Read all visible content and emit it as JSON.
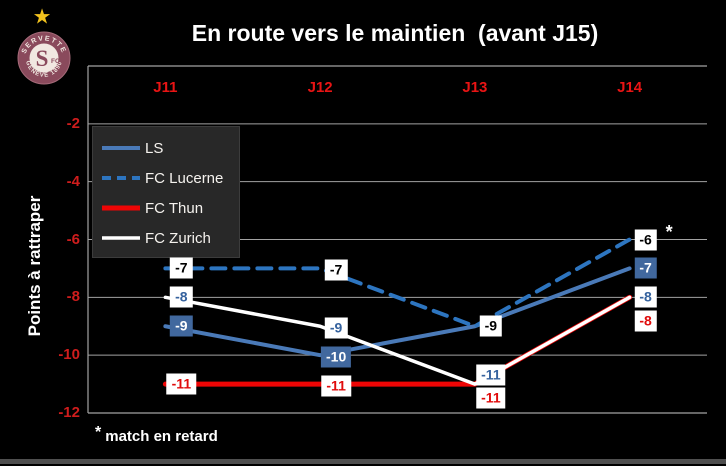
{
  "page": {
    "background": "#000000",
    "bottom_bar_color": "#4f4f4f"
  },
  "logo": {
    "club": "Servette FC",
    "star": "★",
    "ring_top": "SERVETTE",
    "center_letter": "S",
    "center_suffix": "FC",
    "ring_bottom": "GENEVE 1890",
    "ring_color": "#8a4a5c",
    "inner_color": "#f1e8e1"
  },
  "title": {
    "text": "En route vers le maintien  (avant J15)",
    "color": "#ffffff"
  },
  "footnote": {
    "asterisk": "*",
    "text": "match en retard"
  },
  "axes": {
    "y_title": "Points à rattraper",
    "x_labels": [
      "J11",
      "J12",
      "J13",
      "J14"
    ],
    "y_ticks": [
      "-2",
      "-4",
      "-6",
      "-8",
      "-10",
      "-12"
    ],
    "x_label_color": "#e81414",
    "y_tick_color": "#cf1d1d",
    "grid_color": "#a3a3a3"
  },
  "chart_data": {
    "type": "line",
    "title": "En route vers le maintien  (avant J15)",
    "categories": [
      "J11",
      "J12",
      "J13",
      "J14"
    ],
    "xlabel": "",
    "ylabel": "Points à rattraper",
    "ylim": [
      -12,
      0
    ],
    "yticks": [
      -2,
      -4,
      -6,
      -8,
      -10,
      -12
    ],
    "grid": true,
    "legend_position": "upper-left",
    "series": [
      {
        "name": "LS",
        "key": "ls",
        "values": [
          -9,
          -10,
          -9,
          -7
        ],
        "color": "#4a7ab8",
        "dash": "",
        "width": 4,
        "z": 1
      },
      {
        "name": "FC Lucerne",
        "key": "lucerne",
        "values": [
          -7,
          -7,
          -9,
          -6
        ],
        "color": "#2d75c0",
        "dash": "14 9",
        "width": 4,
        "z": 3
      },
      {
        "name": "FC Thun",
        "key": "thun",
        "values": [
          -11,
          -11,
          -11,
          -8
        ],
        "color": "#ee0505",
        "dash": "",
        "width": 5,
        "z": 2
      },
      {
        "name": "FC Zurich",
        "key": "zurich",
        "values": [
          -8,
          -9,
          -11,
          -8
        ],
        "color": "#ffffff",
        "dash": "",
        "width": 3.5,
        "z": 4
      }
    ],
    "data_labels": [
      {
        "text": "-7",
        "series": "lucerne",
        "cat": 0,
        "value": -7,
        "dy": 0
      },
      {
        "text": "-8",
        "series": "zurich",
        "cat": 0,
        "value": -8,
        "dy": 0
      },
      {
        "text": "-9",
        "series": "ls",
        "cat": 0,
        "value": -9,
        "dy": 0
      },
      {
        "text": "-11",
        "series": "thun",
        "cat": 0,
        "value": -11,
        "dy": 0
      },
      {
        "text": "-7",
        "series": "lucerne",
        "cat": 1,
        "value": -7,
        "dy": 2
      },
      {
        "text": "-9",
        "series": "zurich",
        "cat": 1,
        "value": -9,
        "dy": 2
      },
      {
        "text": "-10",
        "series": "ls",
        "cat": 1,
        "value": -10,
        "dy": 2
      },
      {
        "text": "-11",
        "series": "thun",
        "cat": 1,
        "value": -11,
        "dy": 2
      },
      {
        "text": "-9",
        "series": "lucerne",
        "cat": 2,
        "value": -9,
        "dy": 0
      },
      {
        "text": "-11",
        "series": "zurich",
        "cat": 2,
        "value": -11,
        "dy": -9
      },
      {
        "text": "-11",
        "series": "thun",
        "cat": 2,
        "value": -11,
        "dy": 14
      },
      {
        "text": "-6",
        "series": "lucerne",
        "cat": 3,
        "value": -6,
        "dy": 0,
        "asterisk": true
      },
      {
        "text": "-7",
        "series": "ls",
        "cat": 3,
        "value": -7,
        "dy": 0
      },
      {
        "text": "-8",
        "series": "zurich",
        "cat": 3,
        "value": -8,
        "dy": 0
      },
      {
        "text": "-8",
        "series": "thun",
        "cat": 3,
        "value": -8,
        "dy": 24
      }
    ],
    "annotation": "* match en retard"
  }
}
